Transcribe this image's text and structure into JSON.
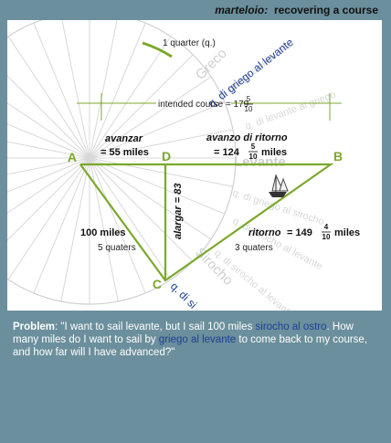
{
  "header": {
    "title_italic": "marteloio:",
    "title_rest": "recovering a course"
  },
  "diagram": {
    "compass_labels": {
      "greco": "Greco",
      "levante": "Levante",
      "sirocho": "Sirocho"
    },
    "watermark_lines": [
      "q. di griego al levante",
      "q. di levante al griego",
      "q. di griego al sirocho",
      "q. di sirocho al levante",
      "q. di sirocho al levante"
    ],
    "quarter_label": "1 quarter (q.)",
    "direction_label": "q. di griego al levante",
    "sirocho_label_fragment": "q. di si",
    "intended_course": {
      "prefix": "intended course = 179",
      "num": "5",
      "den": "10"
    },
    "points": {
      "A": "A",
      "B": "B",
      "C": "C",
      "D": "D"
    },
    "avanzar": {
      "title": "avanzar",
      "value": "= 55 miles"
    },
    "avanzo": {
      "title": "avanzo di ritorno",
      "prefix": "= 124",
      "num": "5",
      "den": "10",
      "suffix": "miles"
    },
    "alargar": "alargar = 83",
    "hundred": {
      "value": "100 miles",
      "quarters": "5 quaters"
    },
    "ritorno": {
      "prefix": "ritorno",
      "eq": "= 149",
      "num": "4",
      "den": "10",
      "suffix": "miles",
      "quarters": "3 quaters"
    },
    "colors": {
      "green": "#7ba82b",
      "blue": "#1e3f96",
      "label": "#222222",
      "grid": "#d8d8d8"
    }
  },
  "problem": {
    "label": "Problem",
    "text1": ": \"I want to sail levante, but I sail 100 miles ",
    "link1": "sirocho al ostro",
    "text2": ". How many miles do I want to sail by ",
    "link2": "griego al levante",
    "text3": " to come back to my course, and how far will I have advanced?\""
  }
}
